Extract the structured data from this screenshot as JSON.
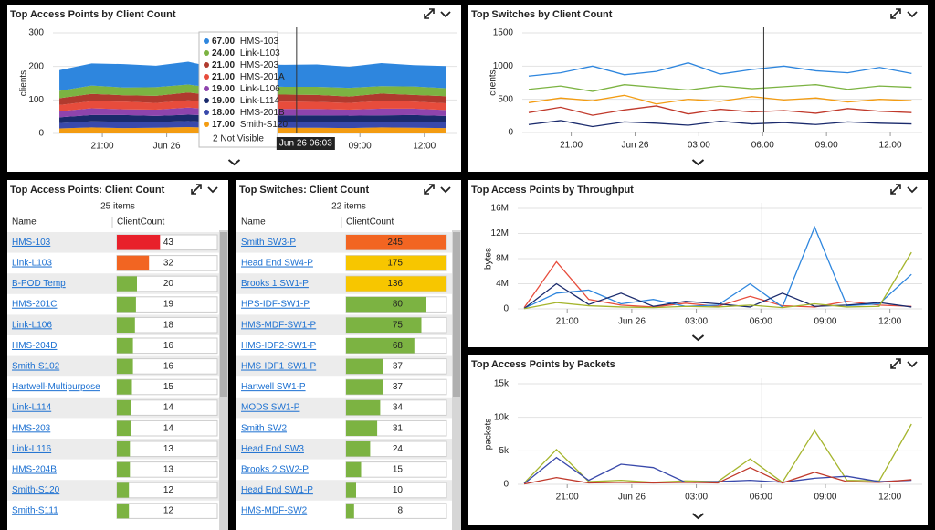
{
  "chart_data": [
    {
      "type": "area",
      "title": "Top Access Points by Client Count",
      "y_label": "clients",
      "x": [
        1,
        2.5,
        4,
        5.5,
        7,
        8.5,
        10,
        11.5,
        13,
        14.5,
        16,
        17.5,
        19
      ],
      "xlim": [
        0.7,
        19.5
      ],
      "xticks": [
        {
          "value": 3,
          "label": "21:00"
        },
        {
          "value": 6,
          "label": "Jun 26"
        },
        {
          "value": 15,
          "label": "09:00"
        },
        {
          "value": 18,
          "label": "12:00"
        }
      ],
      "ylim": [
        0,
        300
      ],
      "yticks": [
        0,
        100,
        200,
        300
      ],
      "grid": true,
      "cursor_x": 12.05,
      "series": [
        {
          "name": "HMS-103",
          "color": "#2e86de",
          "values": [
            62,
            66,
            70,
            64,
            68,
            60,
            65,
            66,
            67,
            63,
            69,
            64,
            66
          ]
        },
        {
          "name": "Link-L103",
          "color": "#7cb342",
          "values": [
            22,
            25,
            23,
            26,
            24,
            21,
            25,
            23,
            24,
            26,
            22,
            25,
            24
          ]
        },
        {
          "name": "HMS-203",
          "color": "#b03a2e",
          "values": [
            20,
            22,
            19,
            21,
            23,
            20,
            22,
            21,
            21,
            19,
            22,
            20,
            21
          ]
        },
        {
          "name": "HMS-201A",
          "color": "#e74c3c",
          "values": [
            19,
            21,
            23,
            20,
            22,
            21,
            19,
            22,
            21,
            20,
            23,
            21,
            20
          ]
        },
        {
          "name": "Link-L106",
          "color": "#8e44ad",
          "values": [
            18,
            20,
            17,
            19,
            21,
            18,
            20,
            19,
            19,
            18,
            20,
            19,
            18
          ]
        },
        {
          "name": "Link-L114",
          "color": "#1a2a6c",
          "values": [
            17,
            19,
            20,
            18,
            19,
            21,
            18,
            20,
            19,
            18,
            19,
            20,
            19
          ]
        },
        {
          "name": "HMS-201B",
          "color": "#3949ab",
          "values": [
            16,
            18,
            19,
            17,
            18,
            16,
            19,
            17,
            18,
            19,
            17,
            18,
            17
          ]
        },
        {
          "name": "Smith-S120",
          "color": "#f39c12",
          "values": [
            15,
            18,
            16,
            17,
            19,
            16,
            18,
            17,
            17,
            16,
            18,
            17,
            16
          ]
        }
      ],
      "tooltip": {
        "title": "Jun 26 06:03",
        "note": "2 Not Visible",
        "items": [
          {
            "name": "HMS-103",
            "value": 67,
            "label": "67.00",
            "color": "#2e86de"
          },
          {
            "name": "Link-L103",
            "value": 24,
            "label": "24.00",
            "color": "#7cb342"
          },
          {
            "name": "HMS-203",
            "value": 21,
            "label": "21.00",
            "color": "#b03a2e"
          },
          {
            "name": "HMS-201A",
            "value": 21,
            "label": "21.00",
            "color": "#e74c3c"
          },
          {
            "name": "Link-L106",
            "value": 19,
            "label": "19.00",
            "color": "#8e44ad"
          },
          {
            "name": "Link-L114",
            "value": 19,
            "label": "19.00",
            "color": "#1a2a6c"
          },
          {
            "name": "HMS-201B",
            "value": 18,
            "label": "18.00",
            "color": "#3949ab"
          },
          {
            "name": "Smith-S120",
            "value": 17,
            "label": "17.00",
            "color": "#f39c12"
          }
        ]
      }
    },
    {
      "type": "line",
      "title": "Top Switches by Client Count",
      "y_label": "clients",
      "x": [
        1,
        2.5,
        4,
        5.5,
        7,
        8.5,
        10,
        11.5,
        13,
        14.5,
        16,
        17.5,
        19
      ],
      "xlim": [
        0.7,
        19.5
      ],
      "xticks": [
        {
          "value": 3,
          "label": "21:00"
        },
        {
          "value": 6,
          "label": "Jun 26"
        },
        {
          "value": 9,
          "label": "03:00"
        },
        {
          "value": 12,
          "label": "06:00"
        },
        {
          "value": 15,
          "label": "09:00"
        },
        {
          "value": 18,
          "label": "12:00"
        }
      ],
      "ylim": [
        0,
        1500
      ],
      "yticks": [
        0,
        500,
        1000,
        1500
      ],
      "grid": true,
      "cursor_x": 12.05,
      "series": [
        {
          "color": "#2e86de",
          "values": [
            850,
            900,
            1000,
            870,
            920,
            1050,
            880,
            950,
            1000,
            930,
            900,
            980,
            890
          ]
        },
        {
          "color": "#7cb342",
          "values": [
            650,
            700,
            620,
            720,
            680,
            640,
            700,
            660,
            690,
            720,
            650,
            700,
            680
          ]
        },
        {
          "color": "#f39c12",
          "values": [
            450,
            520,
            480,
            560,
            430,
            500,
            470,
            540,
            490,
            520,
            460,
            500,
            480
          ]
        },
        {
          "color": "#c0392b",
          "values": [
            300,
            380,
            260,
            340,
            400,
            280,
            350,
            310,
            330,
            290,
            360,
            320,
            300
          ]
        },
        {
          "color": "#1a2a6c",
          "values": [
            120,
            180,
            90,
            160,
            140,
            110,
            170,
            130,
            150,
            120,
            160,
            140,
            130
          ]
        }
      ]
    },
    {
      "type": "line",
      "title": "Top Access Points by Throughput",
      "y_label": "bytes",
      "x": [
        1,
        2.5,
        4,
        5.5,
        7,
        8.5,
        10,
        11.5,
        13,
        14.5,
        16,
        17.5,
        19
      ],
      "xlim": [
        0.7,
        19.5
      ],
      "xticks": [
        {
          "value": 3,
          "label": "21:00"
        },
        {
          "value": 6,
          "label": "Jun 26"
        },
        {
          "value": 9,
          "label": "03:00"
        },
        {
          "value": 12,
          "label": "06:00"
        },
        {
          "value": 15,
          "label": "09:00"
        },
        {
          "value": 18,
          "label": "12:00"
        }
      ],
      "ylim": [
        0,
        16000000
      ],
      "yticks": [
        0,
        {
          "value": 4000000,
          "label": "4M"
        },
        {
          "value": 8000000,
          "label": "8M"
        },
        {
          "value": 12000000,
          "label": "12M"
        },
        {
          "value": 16000000,
          "label": "16M"
        }
      ],
      "grid": true,
      "cursor_x": 12.05,
      "series": [
        {
          "color": "#e74c3c",
          "values": [
            200000,
            7500000,
            1500000,
            600000,
            300000,
            900000,
            400000,
            2000000,
            500000,
            300000,
            1200000,
            600000,
            400000
          ]
        },
        {
          "color": "#2e86de",
          "values": [
            100000,
            2500000,
            3000000,
            800000,
            1500000,
            400000,
            600000,
            4000000,
            300000,
            13000000,
            500000,
            800000,
            5500000
          ]
        },
        {
          "color": "#1a2a6c",
          "values": [
            50000,
            4000000,
            700000,
            2500000,
            400000,
            1200000,
            800000,
            300000,
            2500000,
            400000,
            600000,
            1000000,
            300000
          ]
        },
        {
          "color": "#a5b52d",
          "values": [
            30000,
            1000000,
            500000,
            300000,
            200000,
            400000,
            300000,
            600000,
            200000,
            800000,
            300000,
            400000,
            9000000
          ]
        }
      ]
    },
    {
      "type": "line",
      "title": "Top Access Points by Packets",
      "y_label": "packets",
      "x": [
        1,
        2.5,
        4,
        5.5,
        7,
        8.5,
        10,
        11.5,
        13,
        14.5,
        16,
        17.5,
        19
      ],
      "xlim": [
        0.7,
        19.5
      ],
      "xticks": [
        {
          "value": 3,
          "label": "21:00"
        },
        {
          "value": 6,
          "label": "Jun 26"
        },
        {
          "value": 9,
          "label": "03:00"
        },
        {
          "value": 12,
          "label": "06:00"
        },
        {
          "value": 15,
          "label": "09:00"
        },
        {
          "value": 18,
          "label": "12:00"
        }
      ],
      "ylim": [
        0,
        15000
      ],
      "yticks": [
        0,
        {
          "value": 5000,
          "label": "5k"
        },
        {
          "value": 10000,
          "label": "10k"
        },
        {
          "value": 15000,
          "label": "15k"
        }
      ],
      "grid": true,
      "cursor_x": 12.05,
      "series": [
        {
          "color": "#a5b52d",
          "values": [
            200,
            5200,
            400,
            600,
            300,
            500,
            400,
            3800,
            300,
            8000,
            600,
            500,
            9000
          ]
        },
        {
          "color": "#3949ab",
          "values": [
            100,
            4000,
            600,
            3000,
            2500,
            300,
            400,
            600,
            300,
            900,
            1200,
            400,
            600
          ]
        },
        {
          "color": "#c0392b",
          "values": [
            50,
            1000,
            200,
            300,
            200,
            300,
            200,
            2500,
            200,
            1800,
            400,
            300,
            700
          ]
        }
      ]
    }
  ],
  "tables": [
    {
      "title": "Top Access Points: Client Count",
      "count_text": "25 items",
      "columns": [
        "Name",
        "ClientCount"
      ],
      "bar_max": 100,
      "rows": [
        {
          "name": "HMS-103",
          "value": 43,
          "color": "#e8202a"
        },
        {
          "name": "Link-L103",
          "value": 32,
          "color": "#f26522"
        },
        {
          "name": "B-POD Temp",
          "value": 20,
          "color": "#7cb342"
        },
        {
          "name": "HMS-201C",
          "value": 19,
          "color": "#7cb342"
        },
        {
          "name": "Link-L106",
          "value": 18,
          "color": "#7cb342"
        },
        {
          "name": "HMS-204D",
          "value": 16,
          "color": "#7cb342"
        },
        {
          "name": "Smith-S102",
          "value": 16,
          "color": "#7cb342"
        },
        {
          "name": "Hartwell-Multipurpose",
          "value": 15,
          "color": "#7cb342"
        },
        {
          "name": "Link-L114",
          "value": 14,
          "color": "#7cb342"
        },
        {
          "name": "HMS-203",
          "value": 14,
          "color": "#7cb342"
        },
        {
          "name": "Link-L116",
          "value": 13,
          "color": "#7cb342"
        },
        {
          "name": "HMS-204B",
          "value": 13,
          "color": "#7cb342"
        },
        {
          "name": "Smith-S120",
          "value": 12,
          "color": "#7cb342"
        },
        {
          "name": "Smith-S111",
          "value": 12,
          "color": "#7cb342"
        }
      ]
    },
    {
      "title": "Top Switches: Client Count",
      "count_text": "22 items",
      "columns": [
        "Name",
        "ClientCount"
      ],
      "bar_max": 100,
      "rows": [
        {
          "name": "Smith SW3-P",
          "value": 245,
          "color": "#f26522"
        },
        {
          "name": "Head End SW4-P",
          "value": 175,
          "color": "#f7c600"
        },
        {
          "name": "Brooks 1 SW1-P",
          "value": 136,
          "color": "#f7c600"
        },
        {
          "name": "HPS-IDF-SW1-P",
          "value": 80,
          "color": "#7cb342"
        },
        {
          "name": "HMS-MDF-SW1-P",
          "value": 75,
          "color": "#7cb342"
        },
        {
          "name": "HMS-IDF2-SW1-P",
          "value": 68,
          "color": "#7cb342"
        },
        {
          "name": "HMS-IDF1-SW1-P",
          "value": 37,
          "color": "#7cb342"
        },
        {
          "name": "Hartwell SW1-P",
          "value": 37,
          "color": "#7cb342"
        },
        {
          "name": "MODS SW1-P",
          "value": 34,
          "color": "#7cb342"
        },
        {
          "name": "Smith SW2",
          "value": 31,
          "color": "#7cb342"
        },
        {
          "name": "Head End SW3",
          "value": 24,
          "color": "#7cb342"
        },
        {
          "name": "Brooks 2 SW2-P",
          "value": 15,
          "color": "#7cb342"
        },
        {
          "name": "Head End SW1-P",
          "value": 10,
          "color": "#7cb342"
        },
        {
          "name": "HMS-MDF-SW2",
          "value": 8,
          "color": "#7cb342"
        }
      ]
    }
  ]
}
